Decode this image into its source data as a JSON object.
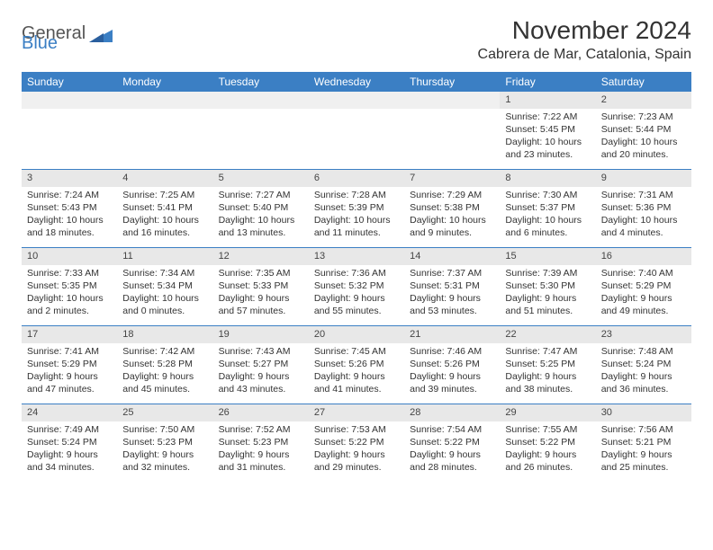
{
  "logo": {
    "text1": "General",
    "text2": "Blue"
  },
  "title": "November 2024",
  "location": "Cabrera de Mar, Catalonia, Spain",
  "colors": {
    "header_bg": "#3b7fc4",
    "header_text": "#ffffff",
    "daynum_bg": "#e8e8e8",
    "border": "#3b7fc4",
    "text": "#333333"
  },
  "weekdays": [
    "Sunday",
    "Monday",
    "Tuesday",
    "Wednesday",
    "Thursday",
    "Friday",
    "Saturday"
  ],
  "weeks": [
    [
      {
        "n": "",
        "sunrise": "",
        "sunset": "",
        "daylight": ""
      },
      {
        "n": "",
        "sunrise": "",
        "sunset": "",
        "daylight": ""
      },
      {
        "n": "",
        "sunrise": "",
        "sunset": "",
        "daylight": ""
      },
      {
        "n": "",
        "sunrise": "",
        "sunset": "",
        "daylight": ""
      },
      {
        "n": "",
        "sunrise": "",
        "sunset": "",
        "daylight": ""
      },
      {
        "n": "1",
        "sunrise": "Sunrise: 7:22 AM",
        "sunset": "Sunset: 5:45 PM",
        "daylight": "Daylight: 10 hours and 23 minutes."
      },
      {
        "n": "2",
        "sunrise": "Sunrise: 7:23 AM",
        "sunset": "Sunset: 5:44 PM",
        "daylight": "Daylight: 10 hours and 20 minutes."
      }
    ],
    [
      {
        "n": "3",
        "sunrise": "Sunrise: 7:24 AM",
        "sunset": "Sunset: 5:43 PM",
        "daylight": "Daylight: 10 hours and 18 minutes."
      },
      {
        "n": "4",
        "sunrise": "Sunrise: 7:25 AM",
        "sunset": "Sunset: 5:41 PM",
        "daylight": "Daylight: 10 hours and 16 minutes."
      },
      {
        "n": "5",
        "sunrise": "Sunrise: 7:27 AM",
        "sunset": "Sunset: 5:40 PM",
        "daylight": "Daylight: 10 hours and 13 minutes."
      },
      {
        "n": "6",
        "sunrise": "Sunrise: 7:28 AM",
        "sunset": "Sunset: 5:39 PM",
        "daylight": "Daylight: 10 hours and 11 minutes."
      },
      {
        "n": "7",
        "sunrise": "Sunrise: 7:29 AM",
        "sunset": "Sunset: 5:38 PM",
        "daylight": "Daylight: 10 hours and 9 minutes."
      },
      {
        "n": "8",
        "sunrise": "Sunrise: 7:30 AM",
        "sunset": "Sunset: 5:37 PM",
        "daylight": "Daylight: 10 hours and 6 minutes."
      },
      {
        "n": "9",
        "sunrise": "Sunrise: 7:31 AM",
        "sunset": "Sunset: 5:36 PM",
        "daylight": "Daylight: 10 hours and 4 minutes."
      }
    ],
    [
      {
        "n": "10",
        "sunrise": "Sunrise: 7:33 AM",
        "sunset": "Sunset: 5:35 PM",
        "daylight": "Daylight: 10 hours and 2 minutes."
      },
      {
        "n": "11",
        "sunrise": "Sunrise: 7:34 AM",
        "sunset": "Sunset: 5:34 PM",
        "daylight": "Daylight: 10 hours and 0 minutes."
      },
      {
        "n": "12",
        "sunrise": "Sunrise: 7:35 AM",
        "sunset": "Sunset: 5:33 PM",
        "daylight": "Daylight: 9 hours and 57 minutes."
      },
      {
        "n": "13",
        "sunrise": "Sunrise: 7:36 AM",
        "sunset": "Sunset: 5:32 PM",
        "daylight": "Daylight: 9 hours and 55 minutes."
      },
      {
        "n": "14",
        "sunrise": "Sunrise: 7:37 AM",
        "sunset": "Sunset: 5:31 PM",
        "daylight": "Daylight: 9 hours and 53 minutes."
      },
      {
        "n": "15",
        "sunrise": "Sunrise: 7:39 AM",
        "sunset": "Sunset: 5:30 PM",
        "daylight": "Daylight: 9 hours and 51 minutes."
      },
      {
        "n": "16",
        "sunrise": "Sunrise: 7:40 AM",
        "sunset": "Sunset: 5:29 PM",
        "daylight": "Daylight: 9 hours and 49 minutes."
      }
    ],
    [
      {
        "n": "17",
        "sunrise": "Sunrise: 7:41 AM",
        "sunset": "Sunset: 5:29 PM",
        "daylight": "Daylight: 9 hours and 47 minutes."
      },
      {
        "n": "18",
        "sunrise": "Sunrise: 7:42 AM",
        "sunset": "Sunset: 5:28 PM",
        "daylight": "Daylight: 9 hours and 45 minutes."
      },
      {
        "n": "19",
        "sunrise": "Sunrise: 7:43 AM",
        "sunset": "Sunset: 5:27 PM",
        "daylight": "Daylight: 9 hours and 43 minutes."
      },
      {
        "n": "20",
        "sunrise": "Sunrise: 7:45 AM",
        "sunset": "Sunset: 5:26 PM",
        "daylight": "Daylight: 9 hours and 41 minutes."
      },
      {
        "n": "21",
        "sunrise": "Sunrise: 7:46 AM",
        "sunset": "Sunset: 5:26 PM",
        "daylight": "Daylight: 9 hours and 39 minutes."
      },
      {
        "n": "22",
        "sunrise": "Sunrise: 7:47 AM",
        "sunset": "Sunset: 5:25 PM",
        "daylight": "Daylight: 9 hours and 38 minutes."
      },
      {
        "n": "23",
        "sunrise": "Sunrise: 7:48 AM",
        "sunset": "Sunset: 5:24 PM",
        "daylight": "Daylight: 9 hours and 36 minutes."
      }
    ],
    [
      {
        "n": "24",
        "sunrise": "Sunrise: 7:49 AM",
        "sunset": "Sunset: 5:24 PM",
        "daylight": "Daylight: 9 hours and 34 minutes."
      },
      {
        "n": "25",
        "sunrise": "Sunrise: 7:50 AM",
        "sunset": "Sunset: 5:23 PM",
        "daylight": "Daylight: 9 hours and 32 minutes."
      },
      {
        "n": "26",
        "sunrise": "Sunrise: 7:52 AM",
        "sunset": "Sunset: 5:23 PM",
        "daylight": "Daylight: 9 hours and 31 minutes."
      },
      {
        "n": "27",
        "sunrise": "Sunrise: 7:53 AM",
        "sunset": "Sunset: 5:22 PM",
        "daylight": "Daylight: 9 hours and 29 minutes."
      },
      {
        "n": "28",
        "sunrise": "Sunrise: 7:54 AM",
        "sunset": "Sunset: 5:22 PM",
        "daylight": "Daylight: 9 hours and 28 minutes."
      },
      {
        "n": "29",
        "sunrise": "Sunrise: 7:55 AM",
        "sunset": "Sunset: 5:22 PM",
        "daylight": "Daylight: 9 hours and 26 minutes."
      },
      {
        "n": "30",
        "sunrise": "Sunrise: 7:56 AM",
        "sunset": "Sunset: 5:21 PM",
        "daylight": "Daylight: 9 hours and 25 minutes."
      }
    ]
  ]
}
